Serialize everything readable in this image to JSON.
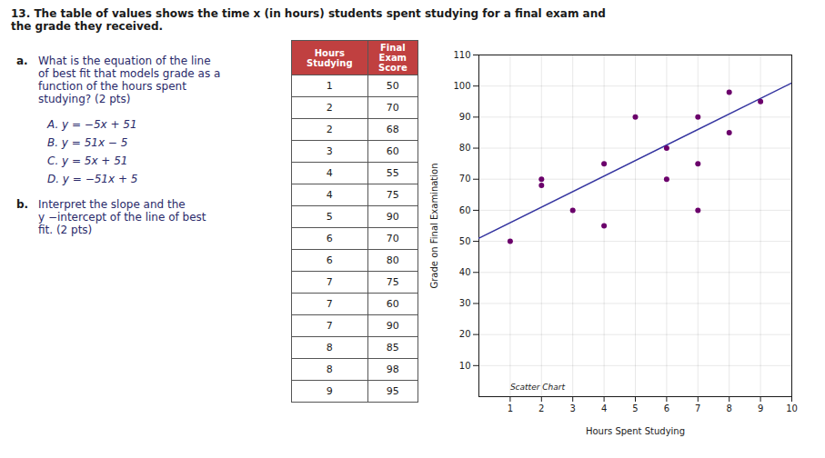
{
  "chart_data": [
    {
      "type": "text",
      "title": "13. The table of values shows the time x (in hours) students spent studying for a final exam and\nthe grade they received.",
      "questions": [
        {
          "label": "a.",
          "text": "What is the equation of the line\nof best fit that models grade as a\nfunction of the hours spent\nstudying? (2 pts)",
          "choices": [
            "A.  y = −5x + 51",
            "B.  y = 51x − 5",
            "C.  y = 5x + 51",
            "D.  y = −51x + 5"
          ]
        },
        {
          "label": "b.",
          "text": "Interpret the slope and the\ny −intercept of the line of best\nfit.  (2 pts)"
        }
      ]
    },
    {
      "type": "table",
      "columns": [
        "Hours\nStudying",
        "Final\nExam\nScore"
      ],
      "color": "#c04040",
      "rows": [
        [
          1,
          50
        ],
        [
          2,
          70
        ],
        [
          2,
          68
        ],
        [
          3,
          60
        ],
        [
          4,
          55
        ],
        [
          4,
          75
        ],
        [
          5,
          90
        ],
        [
          6,
          70
        ],
        [
          6,
          80
        ],
        [
          7,
          75
        ],
        [
          7,
          60
        ],
        [
          7,
          90
        ],
        [
          8,
          85
        ],
        [
          8,
          98
        ],
        [
          9,
          95
        ]
      ]
    },
    {
      "type": "scatter",
      "x_label": "Hours Spent Studying",
      "y_label": "Grade on Final Examination",
      "xlim": [
        0,
        10
      ],
      "ylim": [
        0,
        110
      ],
      "xticks": [
        1,
        2,
        3,
        4,
        5,
        6,
        7,
        8,
        9,
        10
      ],
      "yticks": [
        10,
        20,
        30,
        40,
        50,
        60,
        70,
        80,
        90,
        100,
        110
      ],
      "grid": true,
      "series": [
        {
          "type": "scatter",
          "color": "#6b006b",
          "x": [
            1,
            2,
            2,
            3,
            4,
            4,
            5,
            6,
            6,
            7,
            7,
            7,
            8,
            8,
            9
          ],
          "values": [
            50,
            70,
            68,
            60,
            55,
            75,
            90,
            70,
            80,
            75,
            60,
            90,
            85,
            98,
            95
          ]
        },
        {
          "type": "line",
          "color": "#3535a0",
          "x": [
            0,
            10
          ],
          "values": [
            51,
            101
          ]
        }
      ],
      "annotations": [
        {
          "text": "Scatter Chart",
          "x": 1,
          "y": 3
        }
      ]
    }
  ]
}
